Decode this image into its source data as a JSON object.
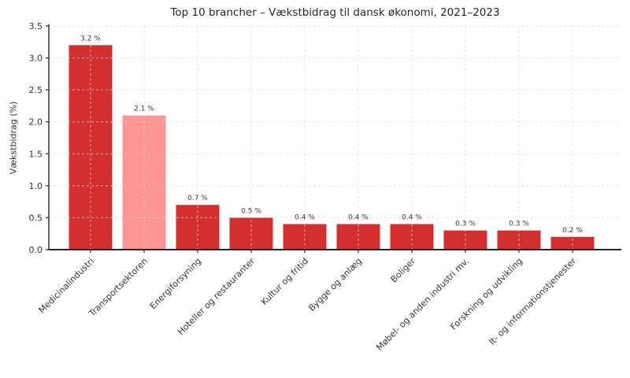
{
  "figure": {
    "background": "#ffffff"
  },
  "chart_data": {
    "type": "bar",
    "title": "Top 10 brancher – Vækstbidrag til dansk økonomi, 2021–2023",
    "xlabel": "",
    "ylabel": "Vækstbidrag (%)",
    "categories": [
      "Medicinalindustri",
      "Transportsektoren",
      "Energiforsyning",
      "Hoteller og restauranter",
      "Kultur og fritid",
      "Bygge og anlæg",
      "Boliger",
      "Møbel- og anden industri mv.",
      "Forskning og udvikling",
      "It- og informationstjenester"
    ],
    "values": [
      3.2,
      2.1,
      0.7,
      0.5,
      0.4,
      0.4,
      0.4,
      0.3,
      0.3,
      0.2
    ],
    "value_labels": [
      "3.2 %",
      "2.1 %",
      "0.7 %",
      "0.5 %",
      "0.4 %",
      "0.4 %",
      "0.4 %",
      "0.3 %",
      "0.3 %",
      "0.2 %"
    ],
    "highlight_index": 1,
    "ylim": [
      0,
      3.5
    ],
    "ytick_labels": [
      "0.0",
      "0.5",
      "1.0",
      "1.5",
      "2.0",
      "2.5",
      "3.0",
      "3.5"
    ],
    "grid": "both-dashed",
    "legend_position": "none",
    "colors": {
      "bar": "#d32f2f",
      "highlight": "#ff9494",
      "grid": "#d9d9d9",
      "axis": "#262626",
      "tick_text": "#333333",
      "value_text": "#3a3a3a",
      "background": "#ffffff"
    }
  }
}
